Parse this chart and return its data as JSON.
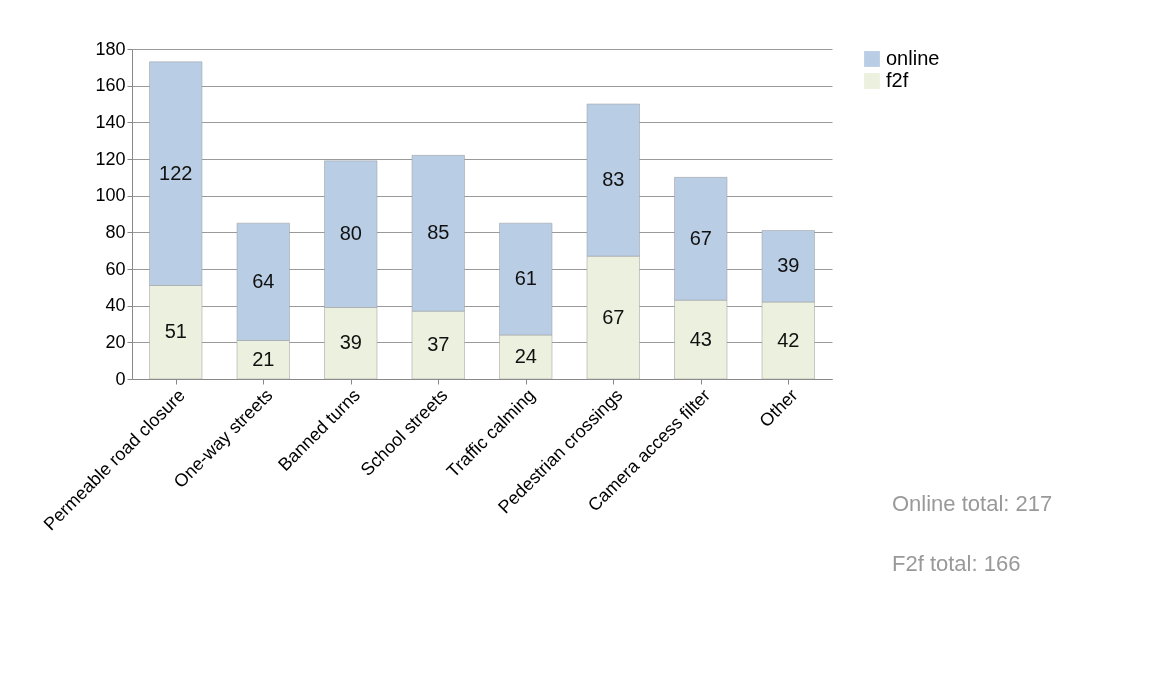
{
  "chart_data": {
    "type": "bar",
    "stacked": true,
    "categories": [
      "Permeable road closure",
      "One-way streets",
      "Banned turns",
      "School streets",
      "Traffic calming",
      "Pedestrian crossings",
      "Camera access filter",
      "Other"
    ],
    "series": [
      {
        "name": "f2f",
        "color": "#ebf1de",
        "values": [
          51,
          21,
          39,
          37,
          24,
          67,
          43,
          42
        ]
      },
      {
        "name": "online",
        "color": "#b9cde5",
        "values": [
          122,
          64,
          80,
          85,
          61,
          83,
          67,
          39
        ]
      }
    ],
    "ylim": [
      0,
      180
    ],
    "yticks": [
      0,
      20,
      40,
      60,
      80,
      100,
      120,
      140,
      160,
      180
    ],
    "grid": "y",
    "legend": "right",
    "data_labels": true,
    "annotations": [
      "Online total: 217",
      "F2f total: 166"
    ]
  }
}
